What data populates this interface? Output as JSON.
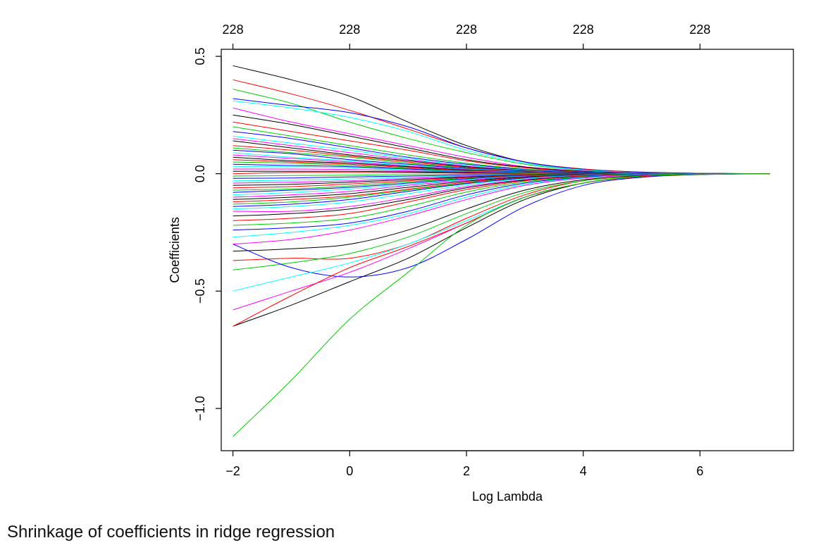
{
  "caption": "Shrinkage of coefficients in ridge regression",
  "chart_data": {
    "type": "line",
    "title": "",
    "xlabel": "Log Lambda",
    "ylabel": "Coefficients",
    "xlim": [
      -2.2,
      7.6
    ],
    "ylim": [
      -1.18,
      0.53
    ],
    "x_ticks": [
      -2,
      0,
      2,
      4,
      6
    ],
    "x_tick_labels": [
      "−2",
      "0",
      "2",
      "4",
      "6"
    ],
    "y_ticks": [
      -1.0,
      -0.5,
      0.0,
      0.5
    ],
    "y_tick_labels": [
      "−1.0",
      "−0.5",
      "0.0",
      "0.5"
    ],
    "top_axis_ticks": [
      -2,
      0,
      2,
      4,
      6
    ],
    "top_axis_labels": [
      "228",
      "228",
      "228",
      "228",
      "228"
    ],
    "grid": false,
    "legend": "none",
    "x": [
      -2,
      -1,
      0,
      1,
      2,
      3,
      4,
      5,
      6,
      7.2
    ],
    "series_colors": [
      "#000000",
      "#ff0000",
      "#00cd00",
      "#0000ff",
      "#00ffff",
      "#ff00ff"
    ],
    "series": [
      {
        "values": [
          0.46,
          0.4,
          0.33,
          0.22,
          0.12,
          0.05,
          0.02,
          0.007,
          0.002,
          0.0
        ]
      },
      {
        "values": [
          0.4,
          0.34,
          0.27,
          0.19,
          0.11,
          0.05,
          0.02,
          0.006,
          0.002,
          0.0
        ]
      },
      {
        "values": [
          0.36,
          0.3,
          0.22,
          0.15,
          0.09,
          0.04,
          0.015,
          0.005,
          0.001,
          0.0
        ]
      },
      {
        "values": [
          0.32,
          0.29,
          0.26,
          0.2,
          0.11,
          0.05,
          0.018,
          0.006,
          0.002,
          0.0
        ]
      },
      {
        "values": [
          0.31,
          0.28,
          0.24,
          0.18,
          0.1,
          0.045,
          0.016,
          0.005,
          0.001,
          0.0
        ]
      },
      {
        "values": [
          0.28,
          0.22,
          0.17,
          0.12,
          0.07,
          0.03,
          0.012,
          0.004,
          0.001,
          0.0
        ]
      },
      {
        "values": [
          0.25,
          0.21,
          0.16,
          0.11,
          0.06,
          0.028,
          0.01,
          0.003,
          0.001,
          0.0
        ]
      },
      {
        "values": [
          0.22,
          0.18,
          0.14,
          0.1,
          0.055,
          0.025,
          0.009,
          0.003,
          0.001,
          0.0
        ]
      },
      {
        "values": [
          0.2,
          0.16,
          0.12,
          0.08,
          0.045,
          0.02,
          0.008,
          0.002,
          0.001,
          0.0
        ]
      },
      {
        "values": [
          0.18,
          0.15,
          0.11,
          0.07,
          0.04,
          0.018,
          0.007,
          0.002,
          0.0,
          0.0
        ]
      },
      {
        "values": [
          0.16,
          0.13,
          0.1,
          0.065,
          0.035,
          0.016,
          0.006,
          0.002,
          0.0,
          0.0
        ]
      },
      {
        "values": [
          0.15,
          0.12,
          0.09,
          0.06,
          0.032,
          0.014,
          0.005,
          0.002,
          0.0,
          0.0
        ]
      },
      {
        "values": [
          0.14,
          0.11,
          0.08,
          0.055,
          0.03,
          0.013,
          0.005,
          0.001,
          0.0,
          0.0
        ]
      },
      {
        "values": [
          0.12,
          0.1,
          0.075,
          0.05,
          0.027,
          0.012,
          0.004,
          0.001,
          0.0,
          0.0
        ]
      },
      {
        "values": [
          0.11,
          0.09,
          0.07,
          0.045,
          0.024,
          0.011,
          0.004,
          0.001,
          0.0,
          0.0
        ]
      },
      {
        "values": [
          0.1,
          0.085,
          0.06,
          0.04,
          0.022,
          0.01,
          0.004,
          0.001,
          0.0,
          0.0
        ]
      },
      {
        "values": [
          0.09,
          0.07,
          0.055,
          0.035,
          0.02,
          0.009,
          0.003,
          0.001,
          0.0,
          0.0
        ]
      },
      {
        "values": [
          0.08,
          0.065,
          0.05,
          0.032,
          0.018,
          0.008,
          0.003,
          0.001,
          0.0,
          0.0
        ]
      },
      {
        "values": [
          0.07,
          0.055,
          0.045,
          0.03,
          0.016,
          0.007,
          0.003,
          0.001,
          0.0,
          0.0
        ]
      },
      {
        "values": [
          0.06,
          0.05,
          0.04,
          0.026,
          0.014,
          0.006,
          0.002,
          0.001,
          0.0,
          0.0
        ]
      },
      {
        "values": [
          0.05,
          0.045,
          0.035,
          0.022,
          0.012,
          0.005,
          0.002,
          0.0,
          0.0,
          0.0
        ]
      },
      {
        "values": [
          0.04,
          0.035,
          0.03,
          0.02,
          0.01,
          0.005,
          0.002,
          0.0,
          0.0,
          0.0
        ]
      },
      {
        "values": [
          0.03,
          0.03,
          0.025,
          0.016,
          0.009,
          0.004,
          0.001,
          0.0,
          0.0,
          0.0
        ]
      },
      {
        "values": [
          0.02,
          0.02,
          0.018,
          0.012,
          0.007,
          0.003,
          0.001,
          0.0,
          0.0,
          0.0
        ]
      },
      {
        "values": [
          0.01,
          0.01,
          0.01,
          0.008,
          0.005,
          0.002,
          0.001,
          0.0,
          0.0,
          0.0
        ]
      },
      {
        "values": [
          0.0,
          0.005,
          0.005,
          0.004,
          0.002,
          0.001,
          0.0,
          0.0,
          0.0,
          0.0
        ]
      },
      {
        "values": [
          -0.01,
          -0.008,
          -0.006,
          -0.004,
          -0.002,
          -0.001,
          0.0,
          0.0,
          0.0,
          0.0
        ]
      },
      {
        "values": [
          -0.02,
          -0.018,
          -0.014,
          -0.01,
          -0.006,
          -0.003,
          -0.001,
          0.0,
          0.0,
          0.0
        ]
      },
      {
        "values": [
          -0.03,
          -0.028,
          -0.022,
          -0.015,
          -0.009,
          -0.004,
          -0.002,
          0.0,
          0.0,
          0.0
        ]
      },
      {
        "values": [
          -0.04,
          -0.036,
          -0.03,
          -0.02,
          -0.012,
          -0.005,
          -0.002,
          -0.001,
          0.0,
          0.0
        ]
      },
      {
        "values": [
          -0.05,
          -0.045,
          -0.036,
          -0.025,
          -0.014,
          -0.006,
          -0.002,
          -0.001,
          0.0,
          0.0
        ]
      },
      {
        "values": [
          -0.06,
          -0.055,
          -0.044,
          -0.03,
          -0.017,
          -0.008,
          -0.003,
          -0.001,
          0.0,
          0.0
        ]
      },
      {
        "values": [
          -0.07,
          -0.065,
          -0.052,
          -0.035,
          -0.02,
          -0.009,
          -0.003,
          -0.001,
          0.0,
          0.0
        ]
      },
      {
        "values": [
          -0.08,
          -0.07,
          -0.058,
          -0.04,
          -0.022,
          -0.01,
          -0.004,
          -0.001,
          0.0,
          0.0
        ]
      },
      {
        "values": [
          -0.09,
          -0.08,
          -0.065,
          -0.045,
          -0.025,
          -0.011,
          -0.004,
          -0.001,
          0.0,
          0.0
        ]
      },
      {
        "values": [
          -0.1,
          -0.09,
          -0.075,
          -0.05,
          -0.028,
          -0.012,
          -0.005,
          -0.002,
          0.0,
          0.0
        ]
      },
      {
        "values": [
          -0.11,
          -0.1,
          -0.085,
          -0.058,
          -0.032,
          -0.014,
          -0.005,
          -0.002,
          0.0,
          0.0
        ]
      },
      {
        "values": [
          -0.12,
          -0.11,
          -0.095,
          -0.066,
          -0.036,
          -0.016,
          -0.006,
          -0.002,
          -0.001,
          0.0
        ]
      },
      {
        "values": [
          -0.13,
          -0.12,
          -0.1,
          -0.07,
          -0.04,
          -0.018,
          -0.007,
          -0.002,
          -0.001,
          0.0
        ]
      },
      {
        "values": [
          -0.14,
          -0.13,
          -0.11,
          -0.075,
          -0.042,
          -0.019,
          -0.007,
          -0.002,
          -0.001,
          0.0
        ]
      },
      {
        "values": [
          -0.15,
          -0.14,
          -0.12,
          -0.085,
          -0.048,
          -0.021,
          -0.008,
          -0.003,
          -0.001,
          0.0
        ]
      },
      {
        "values": [
          -0.16,
          -0.16,
          -0.14,
          -0.1,
          -0.055,
          -0.025,
          -0.009,
          -0.003,
          -0.001,
          0.0
        ]
      },
      {
        "values": [
          -0.18,
          -0.17,
          -0.15,
          -0.11,
          -0.06,
          -0.027,
          -0.01,
          -0.003,
          -0.001,
          0.0
        ]
      },
      {
        "values": [
          -0.2,
          -0.19,
          -0.17,
          -0.12,
          -0.068,
          -0.03,
          -0.011,
          -0.004,
          -0.001,
          0.0
        ]
      },
      {
        "values": [
          -0.22,
          -0.21,
          -0.19,
          -0.14,
          -0.078,
          -0.035,
          -0.013,
          -0.004,
          -0.001,
          0.0
        ]
      },
      {
        "values": [
          -0.24,
          -0.23,
          -0.21,
          -0.16,
          -0.09,
          -0.04,
          -0.015,
          -0.005,
          -0.001,
          0.0
        ]
      },
      {
        "values": [
          -0.27,
          -0.25,
          -0.22,
          -0.17,
          -0.1,
          -0.045,
          -0.017,
          -0.005,
          -0.001,
          0.0
        ]
      },
      {
        "values": [
          -0.3,
          -0.28,
          -0.24,
          -0.18,
          -0.11,
          -0.05,
          -0.019,
          -0.006,
          -0.002,
          0.0
        ]
      },
      {
        "values": [
          -0.33,
          -0.32,
          -0.3,
          -0.24,
          -0.15,
          -0.07,
          -0.026,
          -0.008,
          -0.002,
          0.0
        ]
      },
      {
        "values": [
          -0.37,
          -0.36,
          -0.36,
          -0.3,
          -0.19,
          -0.09,
          -0.03,
          -0.01,
          -0.003,
          0.0
        ]
      },
      {
        "values": [
          -0.41,
          -0.38,
          -0.34,
          -0.27,
          -0.17,
          -0.08,
          -0.03,
          -0.01,
          -0.002,
          0.0
        ]
      },
      {
        "values": [
          -0.3,
          -0.4,
          -0.44,
          -0.4,
          -0.28,
          -0.14,
          -0.05,
          -0.015,
          -0.004,
          0.0
        ]
      },
      {
        "values": [
          -0.5,
          -0.44,
          -0.38,
          -0.3,
          -0.2,
          -0.1,
          -0.04,
          -0.012,
          -0.003,
          0.0
        ]
      },
      {
        "values": [
          -0.58,
          -0.5,
          -0.42,
          -0.32,
          -0.21,
          -0.1,
          -0.04,
          -0.012,
          -0.003,
          0.0
        ]
      },
      {
        "values": [
          -0.65,
          -0.56,
          -0.46,
          -0.36,
          -0.23,
          -0.11,
          -0.04,
          -0.012,
          -0.003,
          0.0
        ]
      },
      {
        "values": [
          -0.65,
          -0.52,
          -0.4,
          -0.31,
          -0.21,
          -0.1,
          -0.04,
          -0.012,
          -0.003,
          0.0
        ]
      },
      {
        "values": [
          -1.12,
          -0.88,
          -0.62,
          -0.42,
          -0.22,
          -0.1,
          -0.04,
          -0.01,
          -0.003,
          0.0
        ]
      }
    ]
  }
}
